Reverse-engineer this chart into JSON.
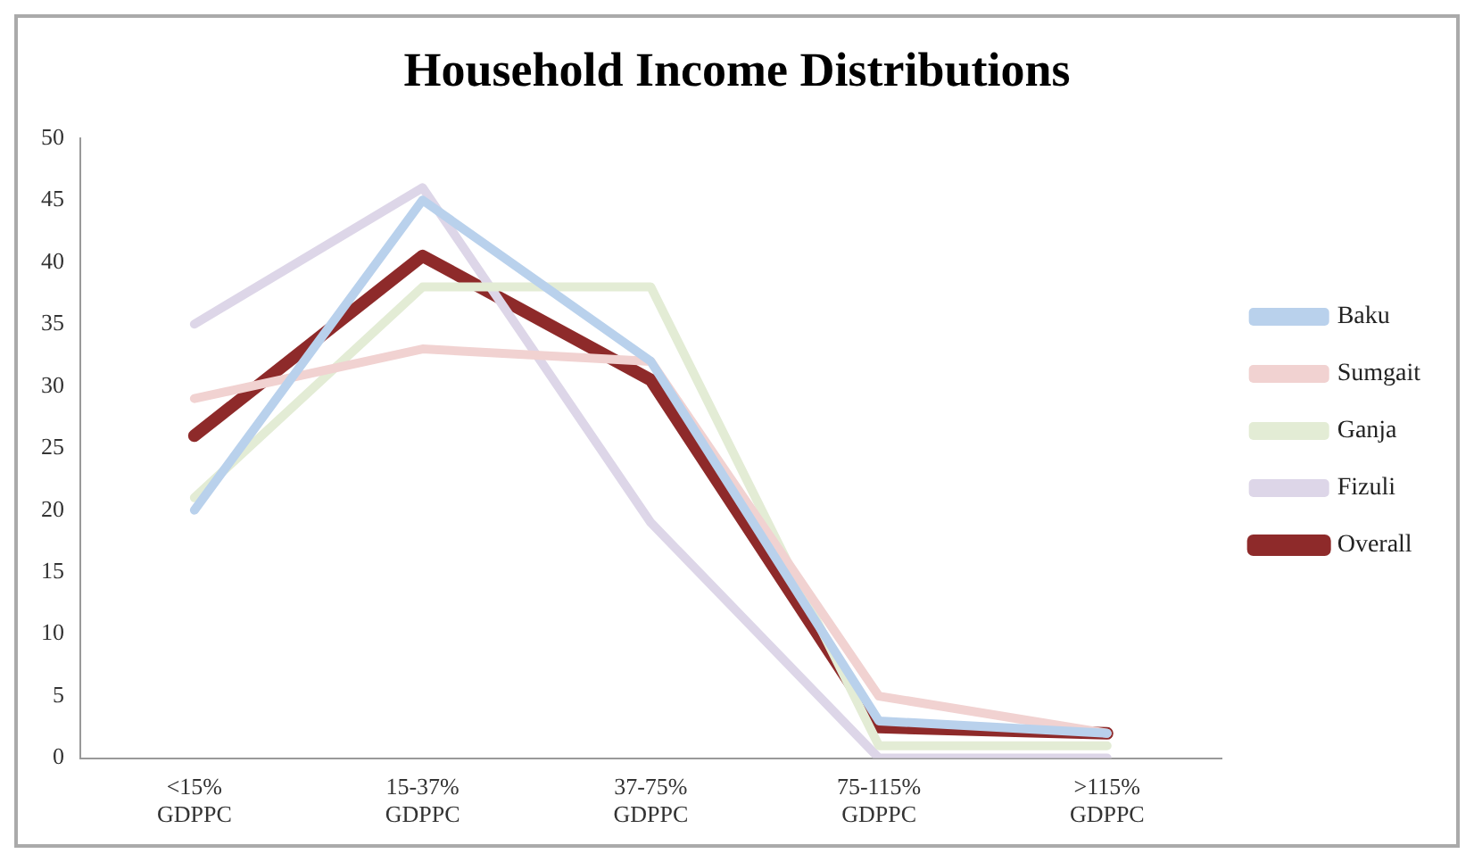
{
  "chart_data": {
    "type": "line",
    "title": "Household Income Distributions",
    "categories": [
      "<15% GDPPC",
      "15-37% GDPPC",
      "37-75% GDPPC",
      "75-115% GDPPC",
      ">115% GDPPC"
    ],
    "series": [
      {
        "name": "Baku",
        "color": "#b9d1ec",
        "values": [
          20,
          45,
          32,
          3,
          2
        ]
      },
      {
        "name": "Sumgait",
        "color": "#f1d2d1",
        "values": [
          29,
          33,
          32,
          5,
          2
        ]
      },
      {
        "name": "Ganja",
        "color": "#e3ecd5",
        "values": [
          21,
          38,
          38,
          1,
          1
        ]
      },
      {
        "name": "Fizuli",
        "color": "#ddd6e8",
        "values": [
          35,
          46,
          19,
          0,
          0
        ]
      },
      {
        "name": "Overall",
        "color": "#8e2a2a",
        "values": [
          26,
          40.5,
          30.5,
          2.5,
          2
        ]
      }
    ],
    "ylim": [
      0,
      50
    ],
    "yticks": [
      0,
      5,
      10,
      15,
      20,
      25,
      30,
      35,
      40,
      45,
      50
    ],
    "grid": false,
    "legend": "right",
    "marker": "none",
    "line_style": "solid"
  }
}
